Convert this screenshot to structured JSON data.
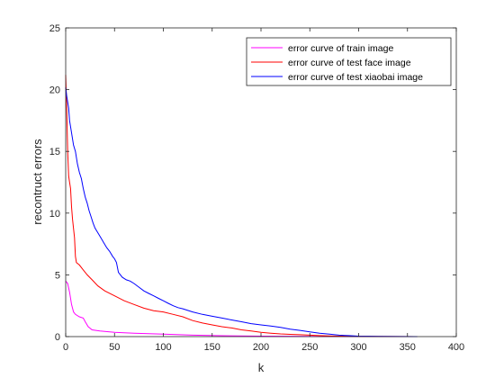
{
  "chart_data": {
    "type": "line",
    "title": "",
    "xlabel": "k",
    "ylabel": "recontruct errors",
    "xlim": [
      0,
      400
    ],
    "ylim": [
      0,
      25
    ],
    "xticks": [
      0,
      50,
      100,
      150,
      200,
      250,
      300,
      350,
      400
    ],
    "yticks": [
      0,
      5,
      10,
      15,
      20,
      25
    ],
    "grid": false,
    "legend_position": "top-right",
    "series": [
      {
        "name": "error curve of train image",
        "color": "#ff00ff",
        "points": [
          [
            0,
            4.5
          ],
          [
            2,
            4.3
          ],
          [
            4,
            3.6
          ],
          [
            6,
            2.6
          ],
          [
            8,
            2.0
          ],
          [
            10,
            1.8
          ],
          [
            14,
            1.6
          ],
          [
            18,
            1.5
          ],
          [
            20,
            1.2
          ],
          [
            23,
            0.8
          ],
          [
            27,
            0.55
          ],
          [
            35,
            0.45
          ],
          [
            50,
            0.35
          ],
          [
            70,
            0.28
          ],
          [
            100,
            0.2
          ],
          [
            130,
            0.12
          ],
          [
            160,
            0.07
          ],
          [
            200,
            0.04
          ],
          [
            250,
            0.02
          ],
          [
            300,
            0.01
          ],
          [
            360,
            0.0
          ]
        ]
      },
      {
        "name": "error curve of test face image",
        "color": "#ff0000",
        "points": [
          [
            0,
            21.2
          ],
          [
            1,
            18.5
          ],
          [
            2,
            15.0
          ],
          [
            3,
            13.0
          ],
          [
            4,
            12.5
          ],
          [
            5,
            12.0
          ],
          [
            6,
            10.5
          ],
          [
            7,
            9.5
          ],
          [
            9,
            8.0
          ],
          [
            10,
            6.5
          ],
          [
            11,
            6.0
          ],
          [
            14,
            5.8
          ],
          [
            18,
            5.4
          ],
          [
            22,
            5.0
          ],
          [
            27,
            4.6
          ],
          [
            33,
            4.1
          ],
          [
            40,
            3.7
          ],
          [
            50,
            3.3
          ],
          [
            60,
            2.9
          ],
          [
            70,
            2.6
          ],
          [
            80,
            2.3
          ],
          [
            90,
            2.1
          ],
          [
            100,
            2.0
          ],
          [
            110,
            1.8
          ],
          [
            120,
            1.6
          ],
          [
            130,
            1.3
          ],
          [
            140,
            1.1
          ],
          [
            150,
            0.95
          ],
          [
            160,
            0.8
          ],
          [
            170,
            0.7
          ],
          [
            180,
            0.55
          ],
          [
            190,
            0.45
          ],
          [
            200,
            0.35
          ],
          [
            210,
            0.28
          ],
          [
            220,
            0.22
          ],
          [
            230,
            0.18
          ],
          [
            240,
            0.15
          ],
          [
            250,
            0.12
          ],
          [
            260,
            0.08
          ],
          [
            270,
            0.06
          ],
          [
            280,
            0.04
          ],
          [
            290,
            0.03
          ],
          [
            300,
            0.02
          ],
          [
            320,
            0.01
          ],
          [
            360,
            0.0
          ]
        ]
      },
      {
        "name": "error curve of test xiaobai image",
        "color": "#0000ff",
        "points": [
          [
            0,
            20.2
          ],
          [
            1,
            19.5
          ],
          [
            3,
            18.5
          ],
          [
            4,
            17.5
          ],
          [
            6,
            16.5
          ],
          [
            8,
            15.5
          ],
          [
            10,
            15.0
          ],
          [
            12,
            14.0
          ],
          [
            14,
            13.3
          ],
          [
            16,
            12.8
          ],
          [
            18,
            12.0
          ],
          [
            20,
            11.3
          ],
          [
            22,
            10.8
          ],
          [
            24,
            10.2
          ],
          [
            26,
            9.7
          ],
          [
            28,
            9.2
          ],
          [
            30,
            8.8
          ],
          [
            33,
            8.4
          ],
          [
            36,
            8.0
          ],
          [
            39,
            7.6
          ],
          [
            42,
            7.2
          ],
          [
            45,
            6.9
          ],
          [
            48,
            6.5
          ],
          [
            50,
            6.3
          ],
          [
            52,
            6.0
          ],
          [
            54,
            5.2
          ],
          [
            56,
            5.0
          ],
          [
            58,
            4.8
          ],
          [
            62,
            4.6
          ],
          [
            66,
            4.5
          ],
          [
            70,
            4.3
          ],
          [
            75,
            4.0
          ],
          [
            80,
            3.7
          ],
          [
            85,
            3.5
          ],
          [
            90,
            3.3
          ],
          [
            95,
            3.1
          ],
          [
            100,
            2.9
          ],
          [
            105,
            2.7
          ],
          [
            110,
            2.5
          ],
          [
            115,
            2.35
          ],
          [
            120,
            2.25
          ],
          [
            130,
            2.0
          ],
          [
            140,
            1.8
          ],
          [
            150,
            1.65
          ],
          [
            160,
            1.5
          ],
          [
            170,
            1.35
          ],
          [
            180,
            1.2
          ],
          [
            190,
            1.05
          ],
          [
            200,
            0.95
          ],
          [
            210,
            0.85
          ],
          [
            220,
            0.75
          ],
          [
            230,
            0.6
          ],
          [
            240,
            0.5
          ],
          [
            250,
            0.38
          ],
          [
            260,
            0.28
          ],
          [
            270,
            0.2
          ],
          [
            280,
            0.12
          ],
          [
            290,
            0.08
          ],
          [
            300,
            0.04
          ],
          [
            320,
            0.02
          ],
          [
            340,
            0.01
          ],
          [
            360,
            0.0
          ]
        ]
      }
    ]
  }
}
